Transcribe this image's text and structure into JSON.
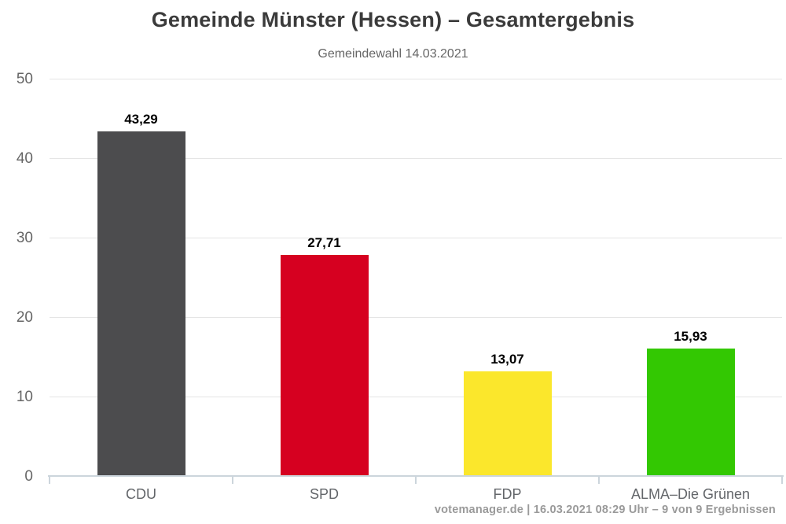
{
  "chart_data": {
    "type": "bar",
    "title": "Gemeinde Münster (Hessen) – Gesamtergebnis",
    "subtitle": "Gemeindewahl 14.03.2021",
    "categories": [
      "CDU",
      "SPD",
      "FDP",
      "ALMA–Die Grünen"
    ],
    "values": [
      43.29,
      27.71,
      13.07,
      15.93
    ],
    "value_labels": [
      "43,29",
      "27,71",
      "13,07",
      "15,93"
    ],
    "bar_colors": [
      "#4c4c4e",
      "#d60020",
      "#fbe72c",
      "#33c802"
    ],
    "xlabel": "",
    "ylabel": "",
    "ylim": [
      0,
      50
    ],
    "yticks": [
      0,
      10,
      20,
      30,
      40,
      50
    ],
    "grid": true,
    "legend": false
  },
  "footer": {
    "text": "votemanager.de | 16.03.2021 08:29 Uhr – 9 von 9 Ergebnissen"
  },
  "style_colors": {
    "grid": "#e5e5e5",
    "axis": "#ccd5dc",
    "title": "#3b3b3b",
    "subtitle": "#666666",
    "tick_label": "#666666",
    "value_label": "#000000",
    "footer": "#9a9a9a"
  }
}
